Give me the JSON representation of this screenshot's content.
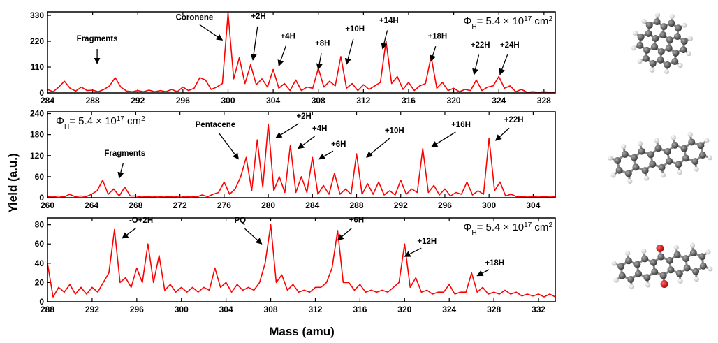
{
  "y_label": "Yield (a.u.)",
  "x_label": "Mass (amu)",
  "chart_data": [
    {
      "type": "line",
      "x": [
        284,
        284.5,
        285,
        285.5,
        286,
        286.5,
        287,
        287.5,
        288,
        288.5,
        289,
        289.5,
        290,
        290.5,
        291,
        291.5,
        292,
        292.5,
        293,
        293.5,
        294,
        294.5,
        295,
        295.5,
        296,
        296.5,
        297,
        297.5,
        298,
        298.5,
        299,
        299.5,
        300,
        300.5,
        301,
        301.5,
        302,
        302.5,
        303,
        303.5,
        304,
        304.5,
        305,
        305.5,
        306,
        306.5,
        307,
        307.5,
        308,
        308.5,
        309,
        309.5,
        310,
        310.5,
        311,
        311.5,
        312,
        312.5,
        313,
        313.5,
        314,
        314.5,
        315,
        315.5,
        316,
        316.5,
        317,
        317.5,
        318,
        318.5,
        319,
        319.5,
        320,
        320.5,
        321,
        321.5,
        322,
        322.5,
        323,
        323.5,
        324,
        324.5,
        325,
        325.5,
        326,
        326.5,
        327,
        327.5,
        328,
        328.5,
        329
      ],
      "series": [
        {
          "color": "#ff0000",
          "values": [
            15,
            5,
            25,
            50,
            20,
            8,
            25,
            10,
            12,
            5,
            15,
            30,
            65,
            25,
            8,
            5,
            10,
            5,
            12,
            5,
            10,
            5,
            15,
            5,
            25,
            10,
            20,
            65,
            55,
            15,
            25,
            40,
            340,
            60,
            150,
            40,
            120,
            35,
            60,
            25,
            100,
            20,
            40,
            10,
            55,
            10,
            25,
            20,
            105,
            25,
            50,
            30,
            155,
            20,
            40,
            10,
            35,
            15,
            30,
            45,
            220,
            40,
            70,
            15,
            45,
            10,
            30,
            40,
            155,
            20,
            45,
            10,
            20,
            5,
            15,
            10,
            55,
            10,
            25,
            30,
            70,
            20,
            30,
            5,
            15,
            3,
            5,
            3,
            5,
            3,
            4
          ]
        }
      ],
      "xlim": [
        284,
        329
      ],
      "ylim": [
        0,
        345
      ],
      "xticks": [
        284,
        288,
        292,
        296,
        300,
        304,
        308,
        312,
        316,
        320,
        324,
        328
      ],
      "yticks": [
        0,
        110,
        220,
        330
      ],
      "flux_label": [
        "Φ",
        "H",
        "= 5.4 × 10",
        "17",
        " cm",
        "2"
      ],
      "annotations": [
        {
          "text": "Fragments",
          "x": 288.4,
          "y": 125
        },
        {
          "text": "Coronene",
          "x": 299.5,
          "y": 225
        },
        {
          "text": "+2H",
          "x": 302.2,
          "y": 140
        },
        {
          "text": "+4H",
          "x": 304.5,
          "y": 115
        },
        {
          "text": "+8H",
          "x": 308,
          "y": 100
        },
        {
          "text": "+10H",
          "x": 310.5,
          "y": 122
        },
        {
          "text": "+14H",
          "x": 313.7,
          "y": 188
        },
        {
          "text": "+18H",
          "x": 318,
          "y": 135
        },
        {
          "text": "+22H",
          "x": 321.8,
          "y": 78
        },
        {
          "text": "+24H",
          "x": 324.1,
          "y": 78
        }
      ]
    },
    {
      "type": "line",
      "x": [
        260,
        260.5,
        261,
        261.5,
        262,
        262.5,
        263,
        263.5,
        264,
        264.5,
        265,
        265.5,
        266,
        266.5,
        267,
        267.5,
        268,
        268.5,
        269,
        269.5,
        270,
        270.5,
        271,
        271.5,
        272,
        272.5,
        273,
        273.5,
        274,
        274.5,
        275,
        275.5,
        276,
        276.5,
        277,
        277.5,
        278,
        278.5,
        279,
        279.5,
        280,
        280.5,
        281,
        281.5,
        282,
        282.5,
        283,
        283.5,
        284,
        284.5,
        285,
        285.5,
        286,
        286.5,
        287,
        287.5,
        288,
        288.5,
        289,
        289.5,
        290,
        290.5,
        291,
        291.5,
        292,
        292.5,
        293,
        293.5,
        294,
        294.5,
        295,
        295.5,
        296,
        296.5,
        297,
        297.5,
        298,
        298.5,
        299,
        299.5,
        300,
        300.5,
        301,
        301.5,
        302,
        302.5,
        303,
        303.5,
        304,
        304.5,
        305,
        305.5,
        306
      ],
      "series": [
        {
          "color": "#ff0000",
          "values": [
            3,
            2,
            5,
            2,
            10,
            3,
            5,
            3,
            10,
            20,
            50,
            10,
            25,
            5,
            30,
            5,
            5,
            2,
            3,
            2,
            4,
            2,
            3,
            2,
            5,
            2,
            4,
            2,
            8,
            3,
            10,
            15,
            45,
            10,
            25,
            60,
            115,
            20,
            165,
            30,
            210,
            20,
            60,
            15,
            150,
            15,
            60,
            15,
            115,
            10,
            35,
            10,
            70,
            10,
            25,
            10,
            125,
            10,
            40,
            10,
            45,
            8,
            20,
            8,
            50,
            10,
            25,
            15,
            140,
            15,
            35,
            8,
            25,
            5,
            15,
            10,
            45,
            8,
            20,
            10,
            170,
            20,
            45,
            5,
            10,
            3,
            3,
            2,
            3,
            2,
            3,
            2,
            3
          ]
        }
      ],
      "xlim": [
        260,
        306
      ],
      "ylim": [
        0,
        245
      ],
      "xticks": [
        260,
        264,
        268,
        272,
        276,
        280,
        284,
        288,
        292,
        296,
        300,
        304
      ],
      "yticks": [
        0,
        60,
        120,
        180,
        240
      ],
      "flux_label": [
        "Φ",
        "H",
        "= 5.4 × 10",
        "17",
        " cm",
        "2"
      ],
      "annotations": [
        {
          "text": "Fragments",
          "x": 266.5,
          "y": 56
        },
        {
          "text": "Pentacene",
          "x": 277.3,
          "y": 110
        },
        {
          "text": "+2H",
          "x": 280.7,
          "y": 171
        },
        {
          "text": "+4H",
          "x": 282.7,
          "y": 140
        },
        {
          "text": "+6H",
          "x": 284.6,
          "y": 110
        },
        {
          "text": "+10H",
          "x": 288.9,
          "y": 115
        },
        {
          "text": "+16H",
          "x": 294.8,
          "y": 145
        },
        {
          "text": "+22H",
          "x": 300.6,
          "y": 163
        }
      ]
    },
    {
      "type": "line",
      "x": [
        288,
        288.5,
        289,
        289.5,
        290,
        290.5,
        291,
        291.5,
        292,
        292.5,
        293,
        293.5,
        294,
        294.5,
        295,
        295.5,
        296,
        296.5,
        297,
        297.5,
        298,
        298.5,
        299,
        299.5,
        300,
        300.5,
        301,
        301.5,
        302,
        302.5,
        303,
        303.5,
        304,
        304.5,
        305,
        305.5,
        306,
        306.5,
        307,
        307.5,
        308,
        308.5,
        309,
        309.5,
        310,
        310.5,
        311,
        311.5,
        312,
        312.5,
        313,
        313.5,
        314,
        314.5,
        315,
        315.5,
        316,
        316.5,
        317,
        317.5,
        318,
        318.5,
        319,
        319.5,
        320,
        320.5,
        321,
        321.5,
        322,
        322.5,
        323,
        323.5,
        324,
        324.5,
        325,
        325.5,
        326,
        326.5,
        327,
        327.5,
        328,
        328.5,
        329,
        329.5,
        330,
        330.5,
        331,
        331.5,
        332,
        332.5,
        333,
        333.5
      ],
      "series": [
        {
          "color": "#ff0000",
          "values": [
            40,
            5,
            15,
            10,
            18,
            8,
            15,
            8,
            15,
            10,
            20,
            30,
            75,
            20,
            25,
            15,
            35,
            20,
            60,
            20,
            48,
            12,
            18,
            10,
            15,
            10,
            15,
            10,
            15,
            12,
            35,
            15,
            20,
            10,
            18,
            12,
            15,
            12,
            20,
            40,
            80,
            20,
            28,
            12,
            18,
            10,
            12,
            10,
            15,
            15,
            20,
            35,
            74,
            20,
            20,
            12,
            18,
            10,
            12,
            10,
            12,
            10,
            15,
            20,
            60,
            15,
            25,
            10,
            12,
            8,
            10,
            10,
            18,
            8,
            10,
            10,
            30,
            10,
            15,
            8,
            10,
            8,
            12,
            8,
            10,
            6,
            8,
            6,
            8,
            5,
            8,
            5
          ]
        }
      ],
      "xlim": [
        288,
        333.5
      ],
      "ylim": [
        0,
        87
      ],
      "xticks": [
        288,
        292,
        296,
        300,
        304,
        308,
        312,
        316,
        320,
        324,
        328,
        332
      ],
      "yticks": [
        0,
        20,
        40,
        60,
        80
      ],
      "flux_label": [
        "Φ",
        "H",
        "= 5.4 × 10",
        "17",
        " cm",
        "2"
      ],
      "annotations": [
        {
          "text": "-O+2H",
          "x": 294.7,
          "y": 66
        },
        {
          "text": "PQ",
          "x": 307.2,
          "y": 60
        },
        {
          "text": "+6H",
          "x": 314,
          "y": 64
        },
        {
          "text": "+12H",
          "x": 320,
          "y": 47
        },
        {
          "text": "+18H",
          "x": 326.5,
          "y": 27
        }
      ]
    }
  ]
}
